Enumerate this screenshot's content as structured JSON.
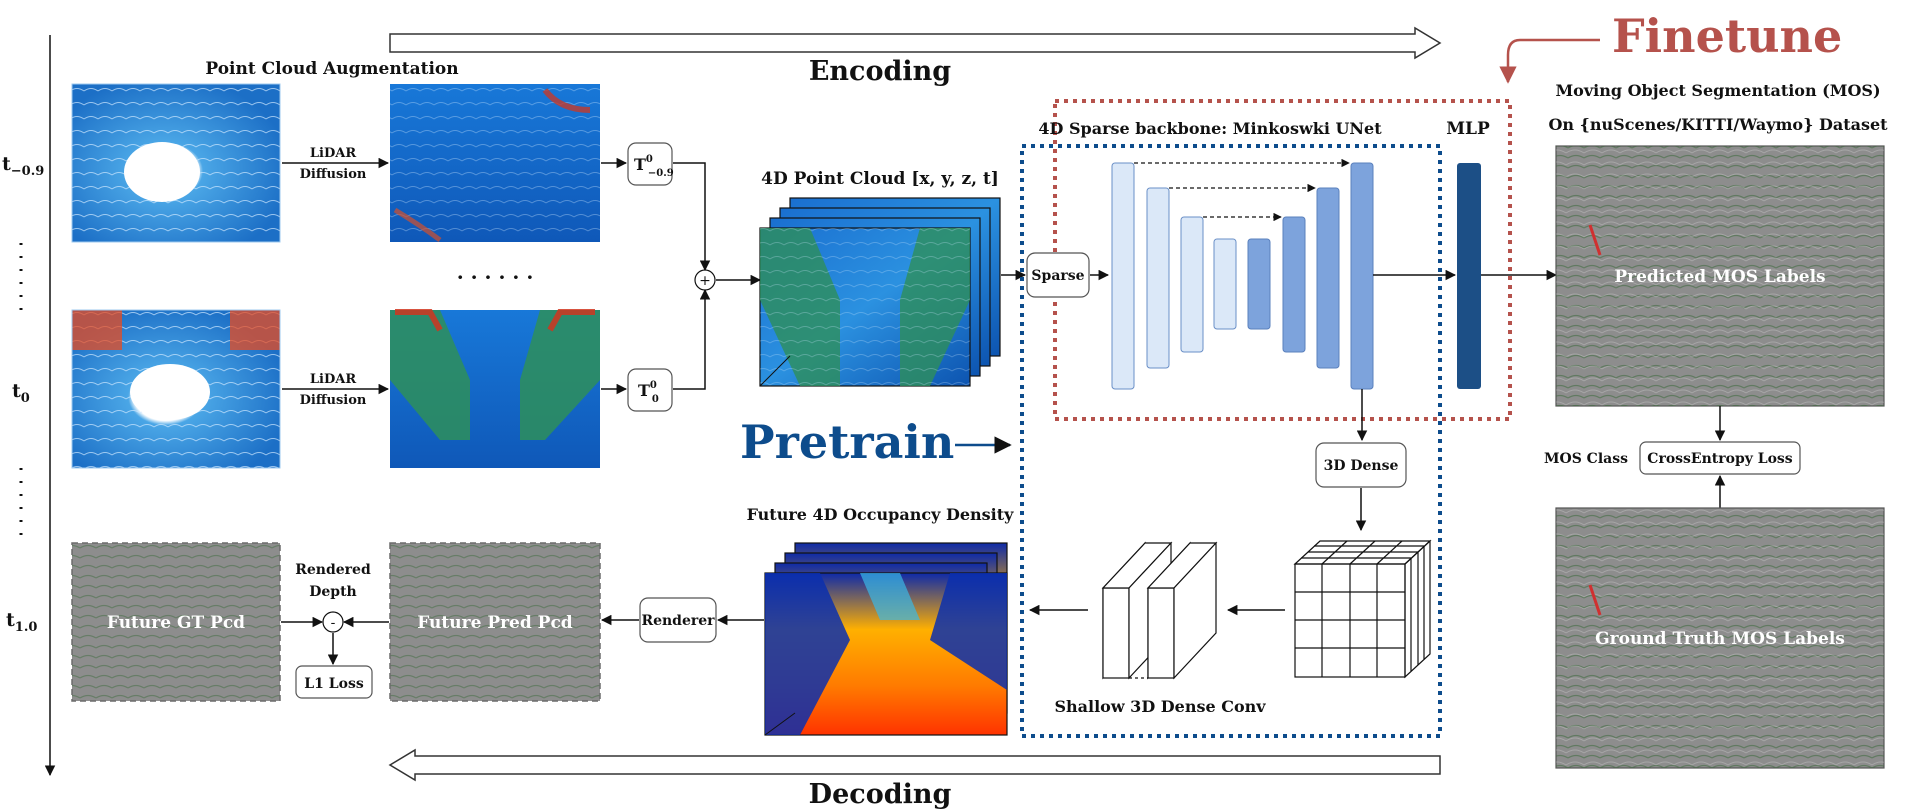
{
  "headings": {
    "augmentation": "Point Cloud Augmentation",
    "encoding": "Encoding",
    "decoding": "Decoding",
    "finetune": "Finetune",
    "pretrain": "Pretrain",
    "mos_title": "Moving Object Segmentation (MOS)",
    "mos_dataset": "On {nuScenes/KITTI/Waymo} Dataset",
    "backbone": "4D Sparse backbone: Minkoswki UNet",
    "mlp": "MLP",
    "point_cloud_4d": "4D Point Cloud [x, y, z, t]",
    "future_density": "Future 4D Occupancy Density",
    "shallow_conv": "Shallow 3D Dense Conv"
  },
  "time_labels": {
    "t_minus": {
      "base": "t",
      "sub": "−0.9"
    },
    "t_zero": {
      "base": "t",
      "sub": "0"
    },
    "t_future": {
      "base": "t",
      "sub": "1.0"
    }
  },
  "boxes": {
    "transform_a": {
      "base": "T",
      "sup": "0",
      "sub": "−0.9"
    },
    "transform_b": {
      "base": "T",
      "sup": "0",
      "sub": "0"
    },
    "plus": "+",
    "minus": "-",
    "sparse": "Sparse",
    "dense3d": "3D Dense",
    "renderer": "Renderer",
    "l1_loss": "L1 Loss",
    "crossentropy": "CrossEntropy Loss",
    "mos_class": "MOS Class"
  },
  "arrow_labels": {
    "lidar_top": "LiDAR",
    "diffusion_top": "Diffusion",
    "lidar_mid": "LiDAR",
    "diffusion_mid": "Diffusion",
    "rendered": "Rendered",
    "depth": "Depth",
    "ellipsis_mid": "· · · · · ·",
    "pretrain_arrow": "⟶"
  },
  "panel_labels": {
    "predicted_mos": "Predicted MOS Labels",
    "ground_truth_mos": "Ground Truth MOS Labels",
    "future_gt": "Future GT Pcd",
    "future_pred": "Future Pred Pcd"
  },
  "colors": {
    "finetune": "#b5524c",
    "pretrain": "#0d4c8c",
    "unet_light": "#dbe8f8",
    "unet_mid": "#b6cff0",
    "unet_dark": "#7da3dc",
    "mlp": "#1c4f86",
    "panel_gray": "#8d8d8d"
  }
}
